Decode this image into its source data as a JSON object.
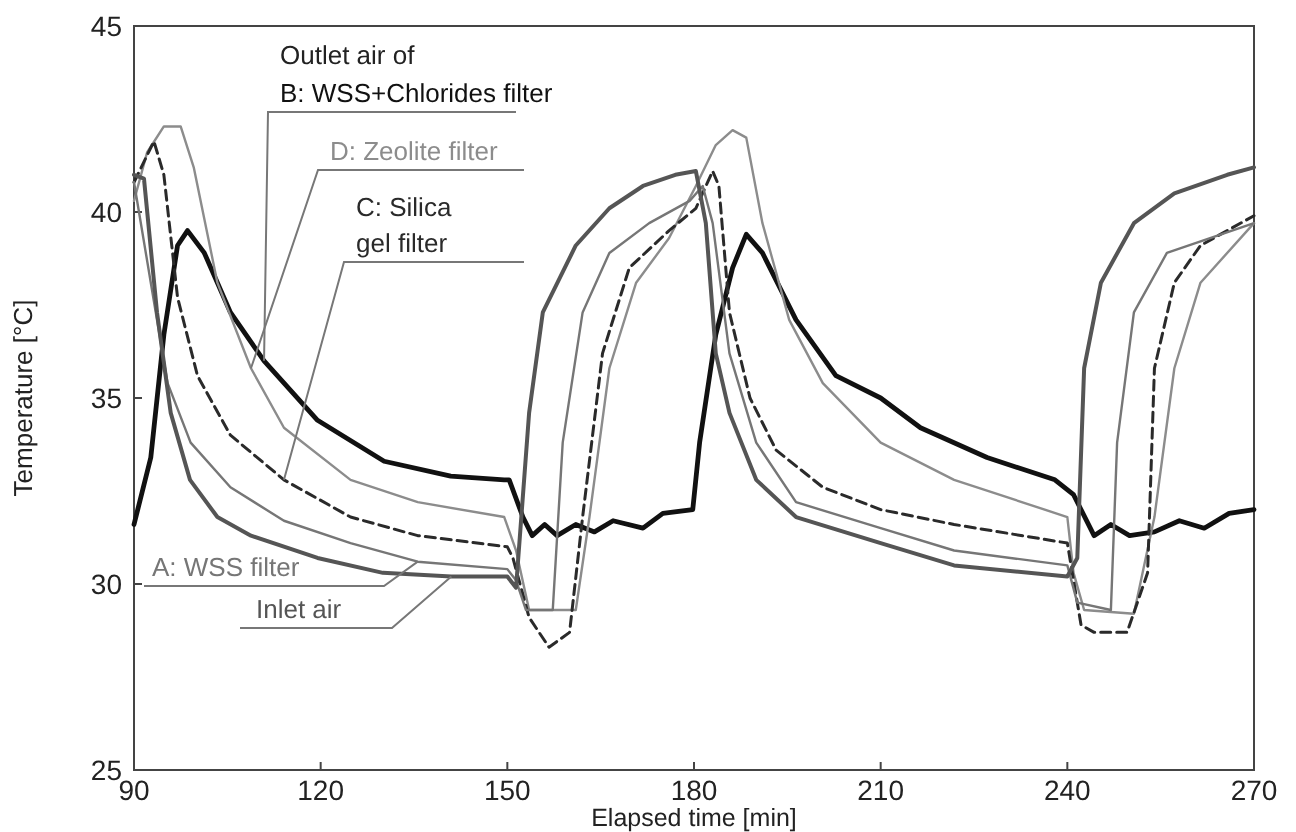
{
  "chart_data": {
    "type": "line",
    "xlabel": "Elapsed time [min]",
    "ylabel": "Temperature [°C]",
    "xlim": [
      90,
      270
    ],
    "xticks": [
      90,
      120,
      150,
      180,
      210,
      240,
      270
    ],
    "ylim": [
      25,
      45
    ],
    "yticks": [
      25,
      30,
      35,
      40,
      45
    ],
    "grid": false,
    "legend": false,
    "annotations": [
      "Outlet air of"
    ],
    "series": [
      {
        "name": "B: WSS+Chlorides filter",
        "color": "#111111",
        "line_style": "solid",
        "x": [
          90,
          92.7,
          94.8,
          97,
          98.6,
          101.3,
          105.5,
          110.9,
          119.5,
          130.2,
          140.9,
          149.5,
          150.3,
          152.5,
          154,
          156,
          158,
          161,
          164,
          167,
          171.8,
          175,
          179.8,
          180.9,
          183.5,
          186.2,
          188.4,
          191,
          196.4,
          202.8,
          210,
          216.4,
          227.1,
          238,
          241,
          244.3,
          247,
          250,
          254,
          258,
          262,
          266,
          270
        ],
        "values": [
          31.6,
          33.4,
          36.7,
          39.1,
          39.5,
          38.9,
          37.3,
          36,
          34.4,
          33.3,
          32.9,
          32.8,
          32.8,
          31.8,
          31.3,
          31.6,
          31.3,
          31.6,
          31.4,
          31.7,
          31.5,
          31.9,
          32,
          33.8,
          36.7,
          38.5,
          39.4,
          38.9,
          37.1,
          35.6,
          35,
          34.2,
          33.4,
          32.8,
          32.4,
          31.3,
          31.6,
          31.3,
          31.4,
          31.7,
          31.5,
          31.9,
          32
        ]
      },
      {
        "name": "D: Zeolite filter",
        "color": "#8c8c8c",
        "line_style": "solid",
        "x": [
          90,
          92.1,
          94.8,
          97.5,
          99.6,
          103.4,
          108.8,
          114.1,
          124.8,
          135.6,
          149.5,
          151.4,
          153.5,
          161,
          163.2,
          166.4,
          170.7,
          176,
          180.3,
          183.5,
          186.2,
          188.4,
          191,
          195.3,
          200.7,
          210,
          221.8,
          240,
          241,
          242.7,
          250.7,
          254,
          257.2,
          261.4,
          270
        ],
        "values": [
          40.3,
          41.6,
          42.3,
          42.3,
          41.2,
          38.1,
          35.8,
          34.2,
          32.8,
          32.2,
          31.8,
          30.9,
          29.3,
          29.3,
          31.8,
          35.8,
          38.1,
          39.3,
          40.7,
          41.8,
          42.2,
          42,
          39.7,
          37.1,
          35.4,
          33.8,
          32.8,
          31.8,
          30.3,
          29.3,
          29.2,
          31.8,
          35.8,
          38.1,
          39.7
        ]
      },
      {
        "name": "C: Silica gel filter",
        "color": "#2a2a2a",
        "line_style": "dashed",
        "x": [
          90,
          93.2,
          94.8,
          97,
          100.2,
          105.5,
          114.1,
          124.8,
          135.6,
          150,
          150.9,
          153.5,
          156.7,
          160,
          162.1,
          165.3,
          169.6,
          176,
          180.3,
          183,
          184,
          185.7,
          189,
          193.2,
          200.7,
          210,
          221.8,
          240,
          242.2,
          244.3,
          249.6,
          252.9,
          254,
          257.2,
          261.4,
          270
        ],
        "values": [
          40.8,
          41.9,
          41,
          37.7,
          35.6,
          34,
          32.8,
          31.8,
          31.3,
          31,
          30.7,
          29.1,
          28.3,
          28.7,
          31.8,
          36.2,
          38.5,
          39.5,
          40.1,
          41.1,
          40.7,
          37.3,
          35,
          33.6,
          32.6,
          32,
          31.6,
          31.1,
          28.9,
          28.7,
          28.7,
          30.3,
          35.8,
          38.1,
          39.1,
          39.9
        ]
      },
      {
        "name": "A: WSS filter",
        "color": "#767676",
        "line_style": "solid",
        "x": [
          90,
          92.7,
          95.4,
          99.1,
          105.5,
          114.1,
          124.8,
          135.6,
          150,
          151.4,
          153,
          157.3,
          158.9,
          162.1,
          166.4,
          172.8,
          179.3,
          181.4,
          183,
          185.7,
          190,
          196.4,
          210,
          221.8,
          240,
          241.6,
          247,
          248,
          250.7,
          256,
          270
        ],
        "values": [
          40.8,
          38.1,
          35.4,
          33.8,
          32.6,
          31.7,
          31.1,
          30.6,
          30.4,
          30.1,
          29.3,
          29.3,
          33.8,
          37.3,
          38.9,
          39.7,
          40.3,
          40.7,
          39.7,
          36.2,
          33.8,
          32.2,
          31.5,
          30.9,
          30.5,
          29.5,
          29.3,
          33.8,
          37.3,
          38.9,
          39.7
        ]
      },
      {
        "name": "Inlet air",
        "color": "#555555",
        "line_style": "solid",
        "x": [
          90,
          91.6,
          93.7,
          95.9,
          99,
          103.4,
          108.8,
          119.5,
          130,
          141,
          150,
          151.4,
          153.5,
          155.7,
          161,
          166.4,
          171.8,
          177,
          180.3,
          181.9,
          183.5,
          185.7,
          190,
          196.4,
          210,
          221.8,
          240,
          241.6,
          242.7,
          245.4,
          250.7,
          257.2,
          265.7,
          270
        ],
        "values": [
          41,
          40.9,
          37.3,
          34.6,
          32.8,
          31.8,
          31.3,
          30.7,
          30.3,
          30.2,
          30.2,
          29.9,
          34.6,
          37.3,
          39.1,
          40.1,
          40.7,
          41,
          41.1,
          39.7,
          36.2,
          34.6,
          32.8,
          31.8,
          31.1,
          30.5,
          30.2,
          30.7,
          35.8,
          38.1,
          39.7,
          40.5,
          41,
          41.2
        ]
      }
    ]
  }
}
